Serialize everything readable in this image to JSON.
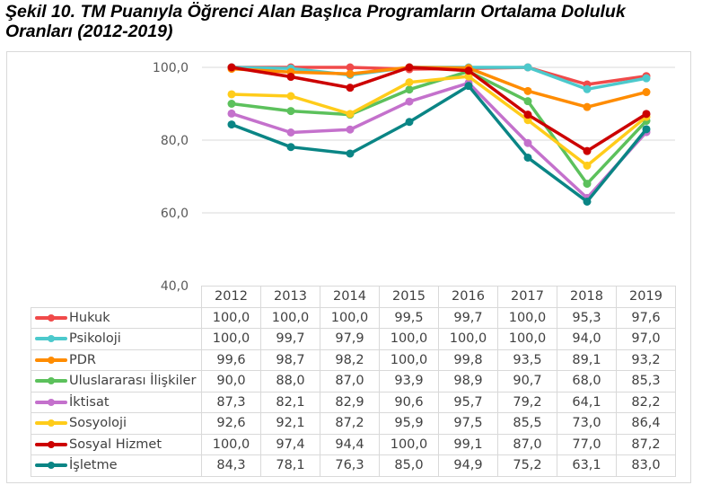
{
  "title": {
    "line1": "Şekil 10. TM Puanıyla Öğrenci Alan Başlıca Programların Ortalama Doluluk",
    "line2": "Oranları (2012-2019)"
  },
  "chart_data": {
    "type": "line",
    "title": "Şekil 10. TM Puanıyla Öğrenci Alan Başlıca Programların Ortalama Doluluk Oranları (2012-2019)",
    "xlabel": "",
    "ylabel": "",
    "ylim": [
      40,
      100
    ],
    "yticks": [
      "100,0",
      "80,0",
      "60,0",
      "40,0"
    ],
    "ytick_values": [
      100,
      80,
      60,
      40
    ],
    "grid": true,
    "legend": "data-table-below",
    "categories": [
      "2012",
      "2013",
      "2014",
      "2015",
      "2016",
      "2017",
      "2018",
      "2019"
    ],
    "series": [
      {
        "name": "Hukuk",
        "color": "#f04a4a",
        "values": [
          100.0,
          100.0,
          100.0,
          99.5,
          99.7,
          100.0,
          95.3,
          97.6
        ],
        "labels": [
          "100,0",
          "100,0",
          "100,0",
          "99,5",
          "99,7",
          "100,0",
          "95,3",
          "97,6"
        ]
      },
      {
        "name": "Psikoloji",
        "color": "#4cc9cc",
        "values": [
          100.0,
          99.7,
          97.9,
          100.0,
          100.0,
          100.0,
          94.0,
          97.0
        ],
        "labels": [
          "100,0",
          "99,7",
          "97,9",
          "100,0",
          "100,0",
          "100,0",
          "94,0",
          "97,0"
        ]
      },
      {
        "name": "PDR",
        "color": "#ff8c00",
        "values": [
          99.6,
          98.7,
          98.2,
          100.0,
          99.8,
          93.5,
          89.1,
          93.2
        ],
        "labels": [
          "99,6",
          "98,7",
          "98,2",
          "100,0",
          "99,8",
          "93,5",
          "89,1",
          "93,2"
        ]
      },
      {
        "name": "Uluslararası İlişkiler",
        "color": "#5cc15c",
        "values": [
          90.0,
          88.0,
          87.0,
          93.9,
          98.9,
          90.7,
          68.0,
          85.3
        ],
        "labels": [
          "90,0",
          "88,0",
          "87,0",
          "93,9",
          "98,9",
          "90,7",
          "68,0",
          "85,3"
        ]
      },
      {
        "name": "İktisat",
        "color": "#c471cc",
        "values": [
          87.3,
          82.1,
          82.9,
          90.6,
          95.7,
          79.2,
          64.1,
          82.2
        ],
        "labels": [
          "87,3",
          "82,1",
          "82,9",
          "90,6",
          "95,7",
          "79,2",
          "64,1",
          "82,2"
        ]
      },
      {
        "name": "Sosyoloji",
        "color": "#ffcc1a",
        "values": [
          92.6,
          92.1,
          87.2,
          95.9,
          97.5,
          85.5,
          73.0,
          86.4
        ],
        "labels": [
          "92,6",
          "92,1",
          "87,2",
          "95,9",
          "97,5",
          "85,5",
          "73,0",
          "86,4"
        ]
      },
      {
        "name": "Sosyal Hizmet",
        "color": "#cc0000",
        "values": [
          100.0,
          97.4,
          94.4,
          100.0,
          99.1,
          87.0,
          77.0,
          87.2
        ],
        "labels": [
          "100,0",
          "97,4",
          "94,4",
          "100,0",
          "99,1",
          "87,0",
          "77,0",
          "87,2"
        ]
      },
      {
        "name": "İşletme",
        "color": "#0a8585",
        "values": [
          84.3,
          78.1,
          76.3,
          85.0,
          94.9,
          75.2,
          63.1,
          83.0
        ],
        "labels": [
          "84,3",
          "78,1",
          "76,3",
          "85,0",
          "94,9",
          "75,2",
          "63,1",
          "83,0"
        ]
      }
    ]
  }
}
